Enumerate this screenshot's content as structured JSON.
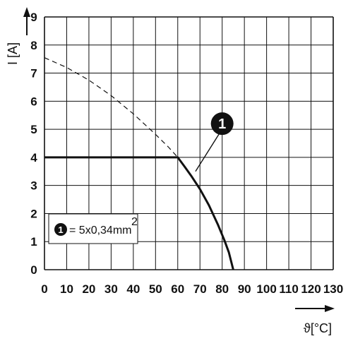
{
  "chart_data": {
    "type": "line",
    "xlabel": "ϑ[°C]",
    "ylabel": "I [A]",
    "xlim": [
      0,
      130
    ],
    "ylim": [
      0,
      9
    ],
    "x_ticks": [
      "0",
      "10",
      "20",
      "30",
      "40",
      "50",
      "60",
      "70",
      "80",
      "90",
      "100",
      "110",
      "120",
      "130"
    ],
    "y_ticks": [
      "0",
      "1",
      "2",
      "3",
      "4",
      "5",
      "6",
      "7",
      "8",
      "9"
    ],
    "grid": true,
    "series": [
      {
        "style": "solid",
        "points": [
          [
            0,
            4
          ],
          [
            60,
            4
          ],
          [
            63,
            3.68
          ],
          [
            66,
            3.35
          ],
          [
            70,
            2.87
          ],
          [
            74,
            2.3
          ],
          [
            78,
            1.62
          ],
          [
            81,
            1.05
          ],
          [
            83,
            0.62
          ],
          [
            85,
            0
          ]
        ]
      },
      {
        "style": "dashed",
        "points": [
          [
            0,
            7.55
          ],
          [
            10,
            7.2
          ],
          [
            20,
            6.75
          ],
          [
            30,
            6.2
          ],
          [
            40,
            5.55
          ],
          [
            50,
            4.82
          ],
          [
            56,
            4.35
          ],
          [
            60,
            4
          ]
        ]
      }
    ],
    "annotations": [
      {
        "marker": "1",
        "x": 80,
        "y": 5.2,
        "points_to": [
          68,
          3.5
        ]
      }
    ],
    "legend": {
      "marker": "1",
      "text": "= 5x0,34mm",
      "superscript": "2",
      "placement": "bottom-left"
    }
  }
}
